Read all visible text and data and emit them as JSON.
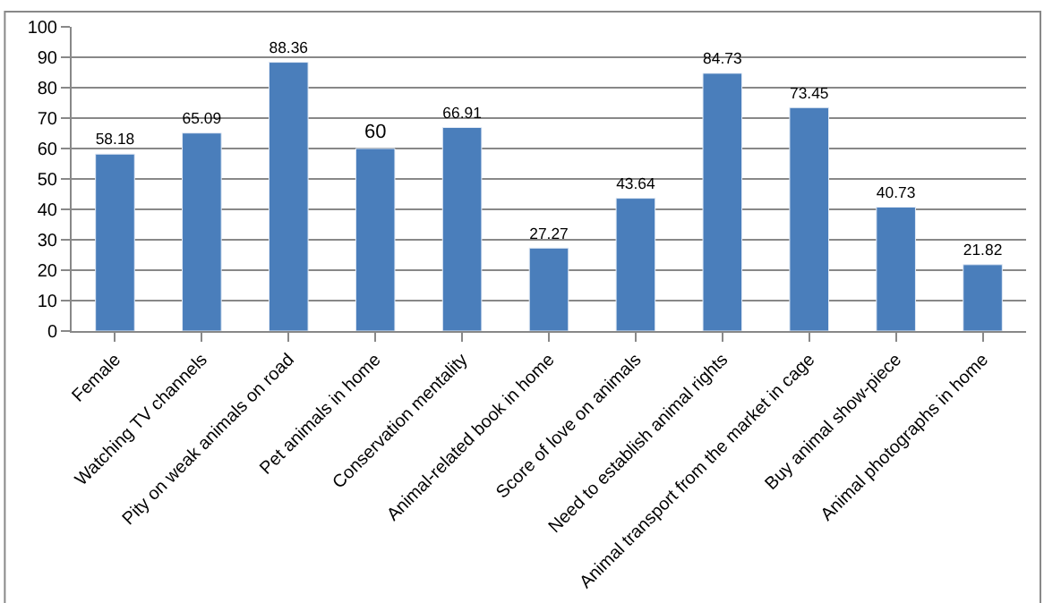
{
  "chart_data": {
    "type": "bar",
    "categories": [
      "Female",
      "Watching TV channels",
      "Pity on weak animals on road",
      "Pet animals in home",
      "Conservation mentality",
      "Animal-related book in home",
      "Score of love on animals",
      "Need to establish animal rights",
      "Animal transport from the market in cage",
      "Buy animal show-piece",
      "Animal photographs in home"
    ],
    "values": [
      58.18,
      65.09,
      88.36,
      60,
      66.91,
      27.27,
      43.64,
      84.73,
      73.45,
      40.73,
      21.82
    ],
    "color": "#4a7ebb",
    "ylim": [
      0,
      100
    ],
    "yticks": [
      0,
      10,
      20,
      30,
      40,
      50,
      60,
      70,
      80,
      90,
      100
    ],
    "grid": "y",
    "data_labels": true,
    "legend": false
  }
}
